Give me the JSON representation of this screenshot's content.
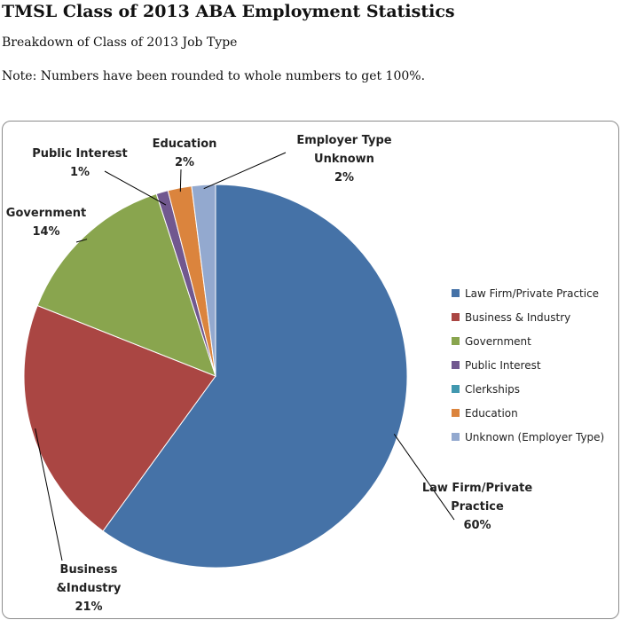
{
  "header": {
    "title": "TMSL Class of 2013 ABA Employment Statistics",
    "subtitle": "Breakdown of Class of 2013 Job Type",
    "note": "Note:  Numbers have been rounded to whole numbers to get 100%."
  },
  "chart_data": {
    "type": "pie",
    "title": "",
    "slices": [
      {
        "name": "Law Firm/Private Practice",
        "value": 60,
        "color": "#4572A7",
        "label_lines": [
          "Law Firm/Private",
          "Practice",
          "60%"
        ]
      },
      {
        "name": "Business & Industry",
        "value": 21,
        "color": "#AA4643",
        "label_lines": [
          "Business",
          "&Industry",
          "21%"
        ]
      },
      {
        "name": "Government",
        "value": 14,
        "color": "#89A54E",
        "label_lines": [
          "Government",
          "14%"
        ]
      },
      {
        "name": "Public Interest",
        "value": 1,
        "color": "#71588F",
        "label_lines": [
          "Public Interest",
          "1%"
        ]
      },
      {
        "name": "Clerkships",
        "value": 0,
        "color": "#4198AF",
        "label_lines": []
      },
      {
        "name": "Education",
        "value": 2,
        "color": "#DB843D",
        "label_lines": [
          "Education",
          "2%"
        ]
      },
      {
        "name": "Unknown (Employer Type)",
        "value": 2,
        "color": "#93A9CF",
        "label_lines": [
          "Employer Type",
          "Unknown",
          "2%"
        ]
      }
    ],
    "legend": {
      "position": "right",
      "entries": [
        "Law Firm/Private Practice",
        "Business & Industry",
        "Government",
        "Public Interest",
        "Clerkships",
        "Education",
        "Unknown (Employer Type)"
      ]
    }
  }
}
